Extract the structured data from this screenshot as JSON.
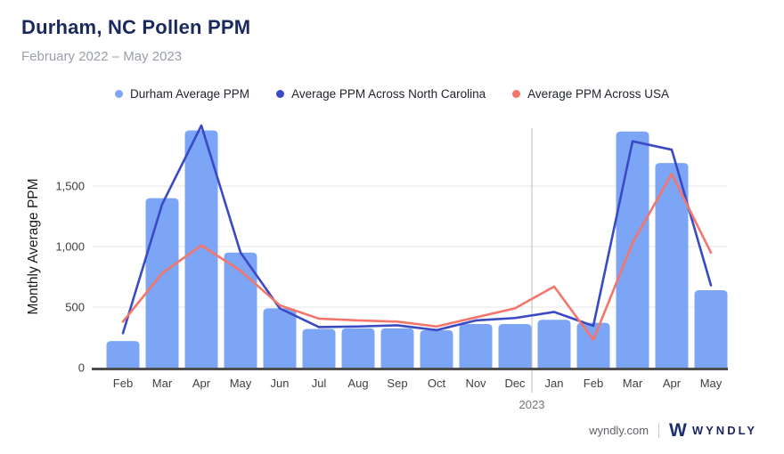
{
  "header": {
    "title": "Durham, NC Pollen PPM",
    "subtitle": "February 2022 – May 2023"
  },
  "legend": [
    {
      "label": "Durham Average PPM",
      "color": "#7ca5f6",
      "marker": "dot"
    },
    {
      "label": "Average PPM Across North Carolina",
      "color": "#3a4ac4",
      "marker": "dot"
    },
    {
      "label": "Average PPM Across USA",
      "color": "#f4756b",
      "marker": "dot"
    }
  ],
  "chart_data": {
    "type": "bar",
    "title": "Durham, NC Pollen PPM",
    "subtitle": "February 2022 – May 2023",
    "categories": [
      "Feb",
      "Mar",
      "Apr",
      "May",
      "Jun",
      "Jul",
      "Aug",
      "Sep",
      "Oct",
      "Nov",
      "Dec",
      "Jan",
      "Feb",
      "Mar",
      "Apr",
      "May"
    ],
    "year_divider": {
      "after_index": 10,
      "label": "2023"
    },
    "series": [
      {
        "name": "Durham Average PPM",
        "type": "bar",
        "color": "#7ca5f6",
        "values": [
          220,
          1400,
          1960,
          950,
          490,
          320,
          325,
          325,
          310,
          360,
          360,
          395,
          370,
          1950,
          1690,
          640
        ]
      },
      {
        "name": "Average PPM Across North Carolina",
        "type": "line",
        "color": "#3a4ac4",
        "values": [
          285,
          1350,
          2000,
          950,
          490,
          335,
          340,
          350,
          310,
          390,
          410,
          460,
          345,
          1870,
          1800,
          680
        ]
      },
      {
        "name": "Average PPM Across USA",
        "type": "line",
        "color": "#f4756b",
        "values": [
          380,
          780,
          1010,
          800,
          515,
          405,
          390,
          380,
          340,
          415,
          490,
          670,
          230,
          1030,
          1600,
          950
        ]
      }
    ],
    "xlabel": "",
    "ylabel": "Monthly Average PPM",
    "yticks": [
      0,
      500,
      1000,
      1500
    ],
    "ytick_labels": [
      "0",
      "500",
      "1,000",
      "1,500"
    ],
    "ylim": [
      0,
      2000
    ],
    "grid": true,
    "legend_position": "top",
    "colors": {
      "gridline": "#e7e7e7",
      "axis_line": "#4d4d4d",
      "divider_line": "#bdbdbd",
      "tick_text": "#3c4043",
      "year_text": "#757575"
    }
  },
  "footer": {
    "site": "wyndly.com",
    "logo_letter": "W",
    "brand": "WYNDLY"
  }
}
